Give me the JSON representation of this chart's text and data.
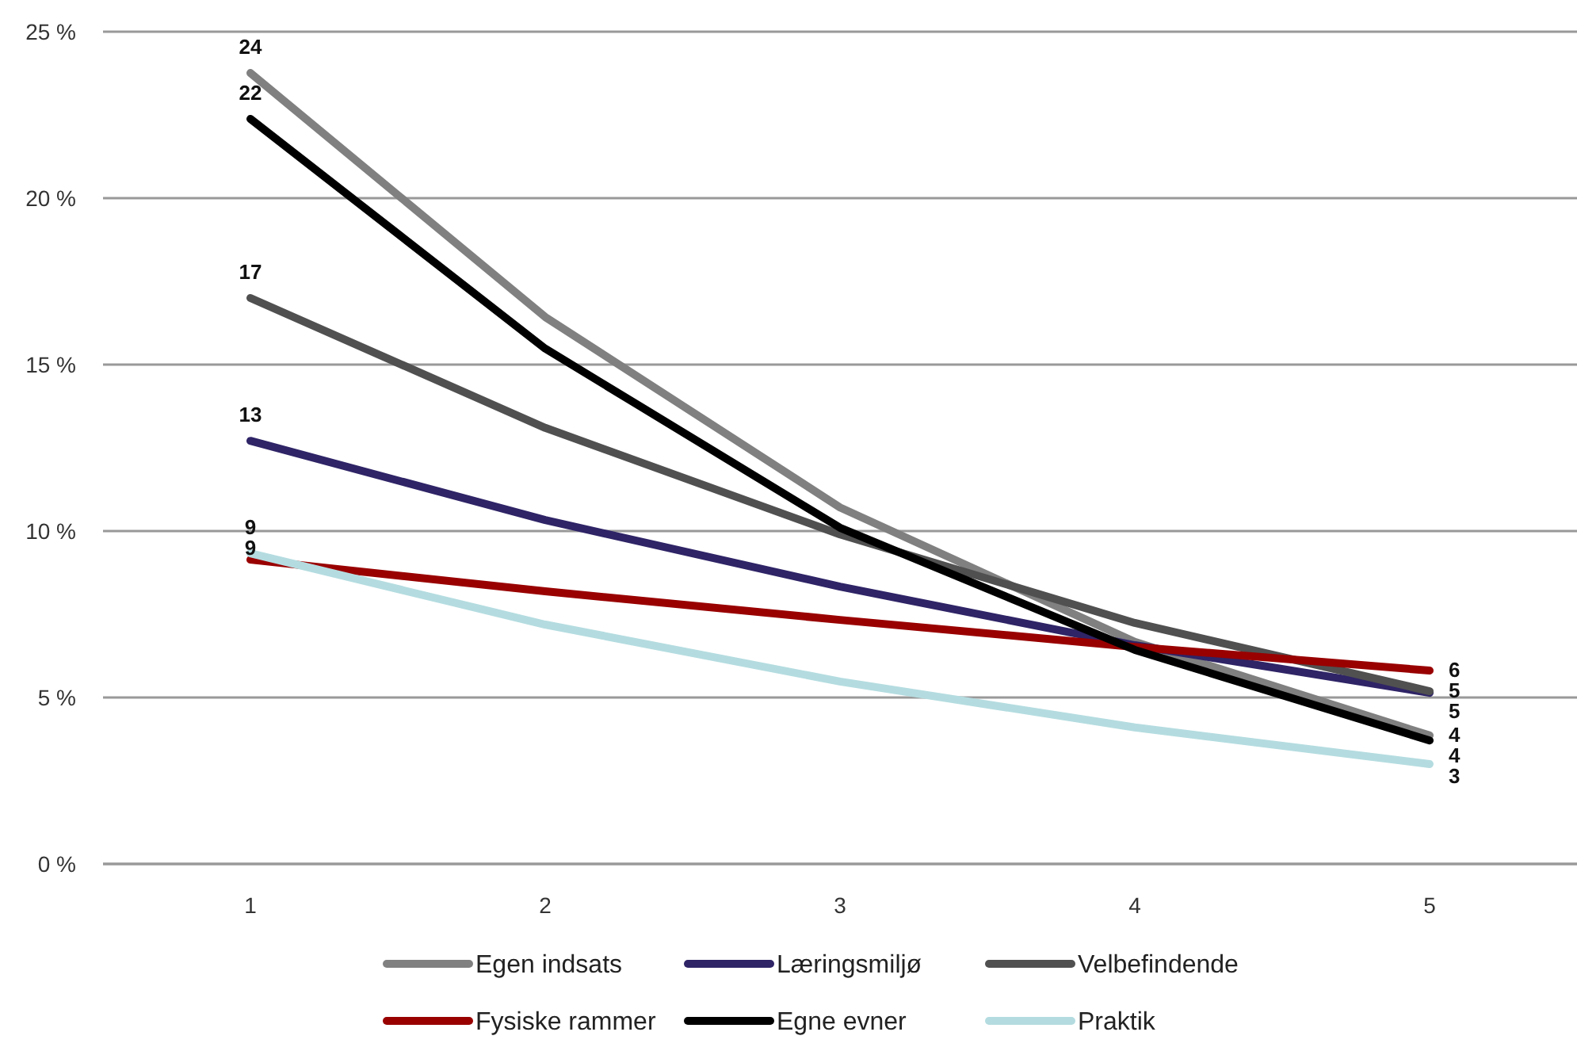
{
  "chart_data": {
    "type": "line",
    "categories": [
      "1",
      "2",
      "3",
      "4",
      "5"
    ],
    "ylim": [
      0,
      25
    ],
    "yticks": [
      {
        "value": 0,
        "label": "0 %"
      },
      {
        "value": 5,
        "label": "5 %"
      },
      {
        "value": 10,
        "label": "10 %"
      },
      {
        "value": 15,
        "label": "15 %"
      },
      {
        "value": 20,
        "label": "20 %"
      },
      {
        "value": 25,
        "label": "25 %"
      }
    ],
    "grid": "y",
    "legend": "bottom",
    "marker": "none",
    "line_style": "solid",
    "series": [
      {
        "name": "Egen indsats",
        "color": "#808080",
        "values": [
          23.76,
          16.43,
          10.71,
          6.67,
          3.86
        ],
        "value_labels": [
          "24",
          null,
          null,
          null,
          "4"
        ]
      },
      {
        "name": "Læringsmiljø",
        "color": "#2e2466",
        "values": [
          12.71,
          10.33,
          8.33,
          6.57,
          5.14
        ],
        "value_labels": [
          "13",
          null,
          null,
          null,
          "5"
        ]
      },
      {
        "name": "Velbefindende",
        "color": "#505050",
        "values": [
          17.0,
          13.1,
          9.9,
          7.24,
          5.19
        ],
        "value_labels": [
          "17",
          null,
          null,
          null,
          "5"
        ]
      },
      {
        "name": "Fysiske rammer",
        "color": "#990000",
        "values": [
          9.14,
          8.19,
          7.33,
          6.52,
          5.81
        ],
        "value_labels": [
          "9",
          null,
          null,
          null,
          "6"
        ]
      },
      {
        "name": "Egne evner",
        "color": "#000000",
        "values": [
          22.38,
          15.48,
          10.1,
          6.43,
          3.71
        ],
        "value_labels": [
          "22",
          null,
          null,
          null,
          "4"
        ]
      },
      {
        "name": "Praktik",
        "color": "#b4dce0",
        "values": [
          9.33,
          7.19,
          5.48,
          4.1,
          3.0
        ],
        "value_labels": [
          "9",
          null,
          null,
          null,
          "3"
        ]
      }
    ]
  }
}
